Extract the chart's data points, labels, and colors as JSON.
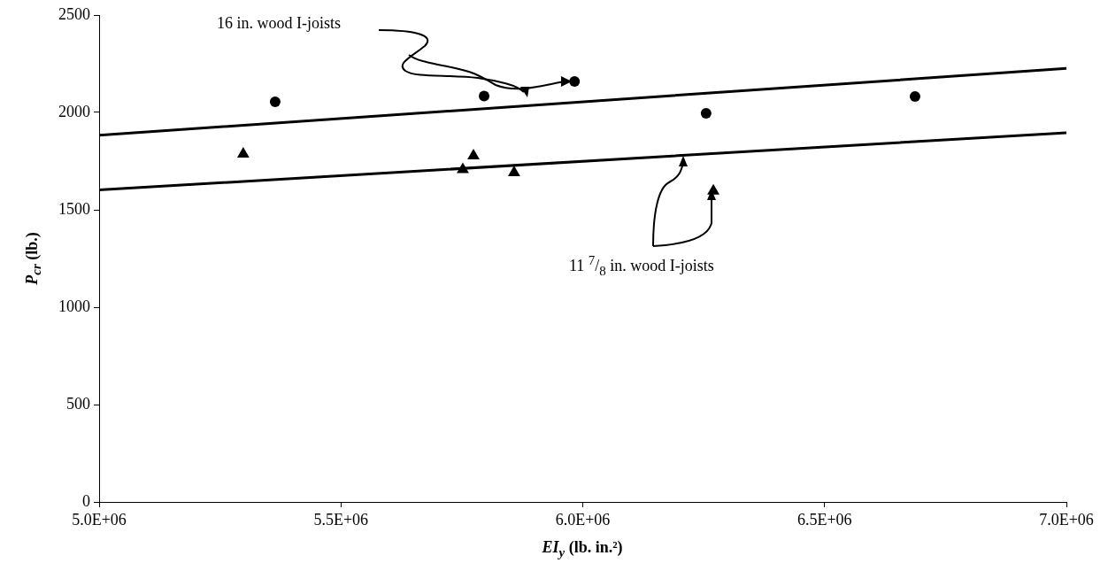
{
  "chart_data": {
    "type": "scatter",
    "xlabel": "EI$_{y}$ (lb. in.²)",
    "ylabel": "P$_{cr}$ (lb.)",
    "annotations": [
      "16 in. wood I-joists",
      "11 $^{7}$/$_{8}$ in. wood I-joists"
    ],
    "xlim": [
      5000000,
      7000000
    ],
    "xticks": [
      {
        "value": 5000000,
        "label": "5.0E+06"
      },
      {
        "value": 5500000,
        "label": "5.5E+06"
      },
      {
        "value": 6000000,
        "label": "6.0E+06"
      },
      {
        "value": 6500000,
        "label": "6.5E+06"
      },
      {
        "value": 7000000,
        "label": "7.0E+06"
      }
    ],
    "ylim": [
      0,
      2500
    ],
    "yticks": [
      0,
      500,
      1000,
      1500,
      2000,
      2500
    ],
    "grid": false,
    "legend": false,
    "series": [
      {
        "type": "scatter",
        "marker": "circle",
        "color": "#000000",
        "x": [
          5364000,
          5796000,
          5983000,
          6255000,
          6687000
        ],
        "values": [
          2055,
          2084,
          2159,
          1995,
          2082
        ]
      },
      {
        "type": "scatter",
        "marker": "triangle",
        "color": "#000000",
        "x": [
          5298000,
          5774000,
          5752000,
          5858000,
          6270000
        ],
        "values": [
          1786,
          1777,
          1707,
          1691,
          1597
        ]
      },
      {
        "type": "line",
        "marker": "none",
        "color": "#000000",
        "x": [
          5000000,
          7000000
        ],
        "values": [
          1883,
          2226
        ]
      },
      {
        "type": "line",
        "marker": "none",
        "color": "#000000",
        "x": [
          5000000,
          7000000
        ],
        "values": [
          1602,
          1896
        ]
      }
    ]
  }
}
